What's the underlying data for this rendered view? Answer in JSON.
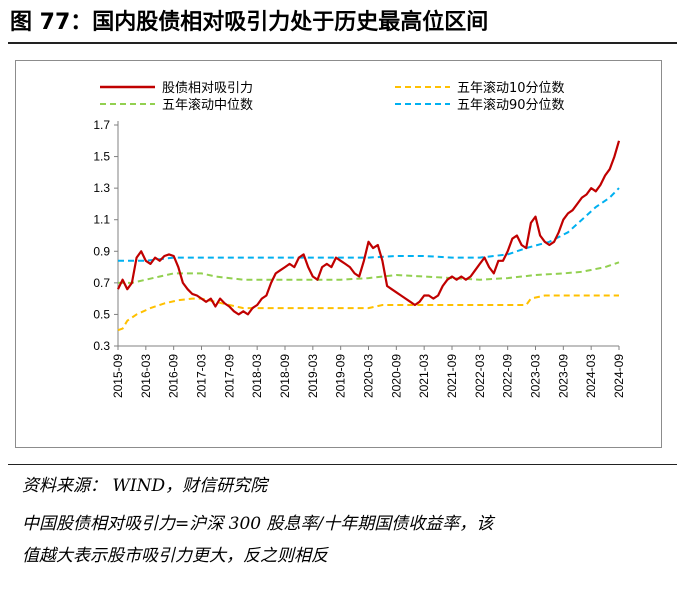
{
  "figure": {
    "title": "图 77：国内股债相对吸引力处于历史最高位区间",
    "source": "资料来源：   WIND，财信研究院",
    "note_line1": "中国股债相对吸引力=沪深 300 股息率/十年期国债收益率，该",
    "note_line2": "值越大表示股市吸引力更大，反之则相反"
  },
  "colors": {
    "relative_attractiveness": "#c00000",
    "p10": "#ffc000",
    "median": "#92d050",
    "p90": "#00b0f0"
  },
  "chart_data": {
    "type": "line",
    "title": "",
    "xlabel": "",
    "ylabel": "",
    "ylim": [
      0.3,
      1.7
    ],
    "yticks": [
      0.3,
      0.5,
      0.7,
      0.9,
      1.1,
      1.3,
      1.5,
      1.7
    ],
    "xrange": [
      "2015-09",
      "2024-09"
    ],
    "xticks": [
      "2015-09",
      "2016-03",
      "2016-09",
      "2017-03",
      "2017-09",
      "2018-03",
      "2018-09",
      "2019-03",
      "2019-09",
      "2020-03",
      "2020-09",
      "2021-03",
      "2021-09",
      "2022-03",
      "2022-09",
      "2023-03",
      "2023-09",
      "2024-03",
      "2024-09"
    ],
    "grid": false,
    "legend_position": "top",
    "series": [
      {
        "name": "股债相对吸引力",
        "style": "solid",
        "points": [
          [
            "2015-09",
            0.66
          ],
          [
            "2015-10",
            0.72
          ],
          [
            "2015-11",
            0.66
          ],
          [
            "2015-12",
            0.7
          ],
          [
            "2016-01",
            0.86
          ],
          [
            "2016-02",
            0.9
          ],
          [
            "2016-03",
            0.84
          ],
          [
            "2016-04",
            0.82
          ],
          [
            "2016-05",
            0.86
          ],
          [
            "2016-06",
            0.84
          ],
          [
            "2016-07",
            0.87
          ],
          [
            "2016-08",
            0.88
          ],
          [
            "2016-09",
            0.87
          ],
          [
            "2016-10",
            0.8
          ],
          [
            "2016-11",
            0.7
          ],
          [
            "2016-12",
            0.66
          ],
          [
            "2017-01",
            0.63
          ],
          [
            "2017-02",
            0.62
          ],
          [
            "2017-03",
            0.6
          ],
          [
            "2017-04",
            0.58
          ],
          [
            "2017-05",
            0.6
          ],
          [
            "2017-06",
            0.55
          ],
          [
            "2017-07",
            0.6
          ],
          [
            "2017-08",
            0.57
          ],
          [
            "2017-09",
            0.55
          ],
          [
            "2017-10",
            0.52
          ],
          [
            "2017-11",
            0.5
          ],
          [
            "2017-12",
            0.52
          ],
          [
            "2018-01",
            0.5
          ],
          [
            "2018-02",
            0.54
          ],
          [
            "2018-03",
            0.56
          ],
          [
            "2018-04",
            0.6
          ],
          [
            "2018-05",
            0.62
          ],
          [
            "2018-06",
            0.7
          ],
          [
            "2018-07",
            0.76
          ],
          [
            "2018-08",
            0.78
          ],
          [
            "2018-09",
            0.8
          ],
          [
            "2018-10",
            0.82
          ],
          [
            "2018-11",
            0.8
          ],
          [
            "2018-12",
            0.86
          ],
          [
            "2019-01",
            0.88
          ],
          [
            "2019-02",
            0.8
          ],
          [
            "2019-03",
            0.74
          ],
          [
            "2019-04",
            0.72
          ],
          [
            "2019-05",
            0.8
          ],
          [
            "2019-06",
            0.82
          ],
          [
            "2019-07",
            0.8
          ],
          [
            "2019-08",
            0.86
          ],
          [
            "2019-09",
            0.84
          ],
          [
            "2019-10",
            0.82
          ],
          [
            "2019-11",
            0.8
          ],
          [
            "2019-12",
            0.76
          ],
          [
            "2020-01",
            0.74
          ],
          [
            "2020-02",
            0.84
          ],
          [
            "2020-03",
            0.96
          ],
          [
            "2020-04",
            0.92
          ],
          [
            "2020-05",
            0.94
          ],
          [
            "2020-06",
            0.84
          ],
          [
            "2020-07",
            0.68
          ],
          [
            "2020-08",
            0.66
          ],
          [
            "2020-09",
            0.64
          ],
          [
            "2020-10",
            0.62
          ],
          [
            "2020-11",
            0.6
          ],
          [
            "2020-12",
            0.58
          ],
          [
            "2021-01",
            0.56
          ],
          [
            "2021-02",
            0.58
          ],
          [
            "2021-03",
            0.62
          ],
          [
            "2021-04",
            0.62
          ],
          [
            "2021-05",
            0.6
          ],
          [
            "2021-06",
            0.62
          ],
          [
            "2021-07",
            0.68
          ],
          [
            "2021-08",
            0.72
          ],
          [
            "2021-09",
            0.74
          ],
          [
            "2021-10",
            0.72
          ],
          [
            "2021-11",
            0.74
          ],
          [
            "2021-12",
            0.72
          ],
          [
            "2022-01",
            0.74
          ],
          [
            "2022-02",
            0.78
          ],
          [
            "2022-03",
            0.82
          ],
          [
            "2022-04",
            0.86
          ],
          [
            "2022-05",
            0.8
          ],
          [
            "2022-06",
            0.76
          ],
          [
            "2022-07",
            0.84
          ],
          [
            "2022-08",
            0.84
          ],
          [
            "2022-09",
            0.9
          ],
          [
            "2022-10",
            0.98
          ],
          [
            "2022-11",
            1.0
          ],
          [
            "2022-12",
            0.94
          ],
          [
            "2023-01",
            0.92
          ],
          [
            "2023-02",
            1.08
          ],
          [
            "2023-03",
            1.12
          ],
          [
            "2023-04",
            1.0
          ],
          [
            "2023-05",
            0.96
          ],
          [
            "2023-06",
            0.94
          ],
          [
            "2023-07",
            0.96
          ],
          [
            "2023-08",
            1.02
          ],
          [
            "2023-09",
            1.1
          ],
          [
            "2023-10",
            1.14
          ],
          [
            "2023-11",
            1.16
          ],
          [
            "2023-12",
            1.2
          ],
          [
            "2024-01",
            1.24
          ],
          [
            "2024-02",
            1.26
          ],
          [
            "2024-03",
            1.3
          ],
          [
            "2024-04",
            1.28
          ],
          [
            "2024-05",
            1.32
          ],
          [
            "2024-06",
            1.38
          ],
          [
            "2024-07",
            1.42
          ],
          [
            "2024-08",
            1.5
          ],
          [
            "2024-09",
            1.6
          ]
        ]
      },
      {
        "name": "五年滚动10分位数",
        "style": "dashed",
        "points": [
          [
            "2015-09",
            0.4
          ],
          [
            "2015-10",
            0.41
          ],
          [
            "2015-11",
            0.46
          ],
          [
            "2016-01",
            0.5
          ],
          [
            "2016-04",
            0.54
          ],
          [
            "2016-07",
            0.57
          ],
          [
            "2016-10",
            0.59
          ],
          [
            "2017-01",
            0.6
          ],
          [
            "2017-03",
            0.6
          ],
          [
            "2017-06",
            0.58
          ],
          [
            "2017-09",
            0.56
          ],
          [
            "2017-12",
            0.54
          ],
          [
            "2018-03",
            0.54
          ],
          [
            "2018-09",
            0.54
          ],
          [
            "2019-03",
            0.54
          ],
          [
            "2019-09",
            0.54
          ],
          [
            "2020-03",
            0.54
          ],
          [
            "2020-06",
            0.56
          ],
          [
            "2020-09",
            0.56
          ],
          [
            "2021-03",
            0.56
          ],
          [
            "2021-09",
            0.56
          ],
          [
            "2022-03",
            0.56
          ],
          [
            "2022-09",
            0.56
          ],
          [
            "2023-01",
            0.56
          ],
          [
            "2023-02",
            0.6
          ],
          [
            "2023-05",
            0.62
          ],
          [
            "2023-09",
            0.62
          ],
          [
            "2024-03",
            0.62
          ],
          [
            "2024-09",
            0.62
          ]
        ]
      },
      {
        "name": "五年滚动中位数",
        "style": "dashed",
        "points": [
          [
            "2015-09",
            0.7
          ],
          [
            "2015-12",
            0.7
          ],
          [
            "2016-03",
            0.72
          ],
          [
            "2016-06",
            0.74
          ],
          [
            "2016-09",
            0.76
          ],
          [
            "2016-12",
            0.76
          ],
          [
            "2017-03",
            0.76
          ],
          [
            "2017-06",
            0.74
          ],
          [
            "2017-09",
            0.73
          ],
          [
            "2017-12",
            0.72
          ],
          [
            "2018-03",
            0.72
          ],
          [
            "2018-09",
            0.72
          ],
          [
            "2019-03",
            0.72
          ],
          [
            "2019-09",
            0.72
          ],
          [
            "2020-03",
            0.73
          ],
          [
            "2020-09",
            0.75
          ],
          [
            "2021-03",
            0.74
          ],
          [
            "2021-09",
            0.73
          ],
          [
            "2022-03",
            0.72
          ],
          [
            "2022-09",
            0.73
          ],
          [
            "2023-03",
            0.75
          ],
          [
            "2023-09",
            0.76
          ],
          [
            "2024-01",
            0.77
          ],
          [
            "2024-06",
            0.8
          ],
          [
            "2024-09",
            0.83
          ]
        ]
      },
      {
        "name": "五年滚动90分位数",
        "style": "dashed",
        "points": [
          [
            "2015-09",
            0.84
          ],
          [
            "2015-12",
            0.84
          ],
          [
            "2016-03",
            0.84
          ],
          [
            "2016-09",
            0.86
          ],
          [
            "2017-03",
            0.86
          ],
          [
            "2017-09",
            0.86
          ],
          [
            "2018-03",
            0.86
          ],
          [
            "2018-09",
            0.86
          ],
          [
            "2019-03",
            0.86
          ],
          [
            "2019-09",
            0.86
          ],
          [
            "2020-03",
            0.86
          ],
          [
            "2020-09",
            0.87
          ],
          [
            "2021-03",
            0.87
          ],
          [
            "2021-09",
            0.86
          ],
          [
            "2022-03",
            0.86
          ],
          [
            "2022-09",
            0.88
          ],
          [
            "2023-01",
            0.92
          ],
          [
            "2023-06",
            0.96
          ],
          [
            "2023-10",
            1.02
          ],
          [
            "2024-01",
            1.1
          ],
          [
            "2024-04",
            1.18
          ],
          [
            "2024-07",
            1.24
          ],
          [
            "2024-09",
            1.3
          ]
        ]
      }
    ]
  }
}
